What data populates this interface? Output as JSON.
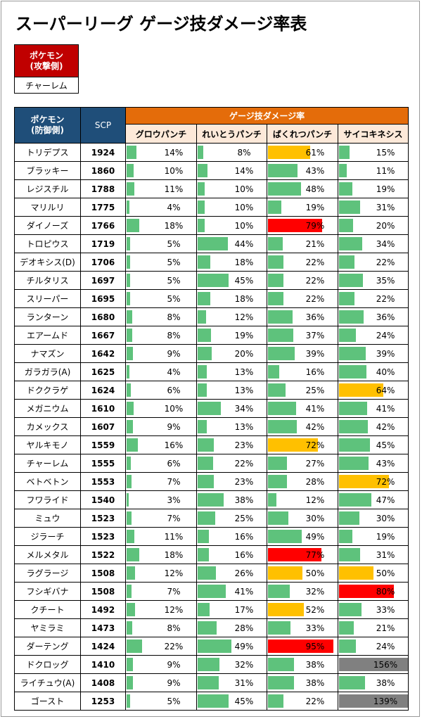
{
  "title": "スーパーリーグ ゲージ技ダメージ率表",
  "attacker": {
    "header_line1": "ポケモン",
    "header_line2": "(攻撃側)",
    "value": "チャーレム"
  },
  "table": {
    "defender_header_line1": "ポケモン",
    "defender_header_line2": "(防御側)",
    "scp_header": "SCP",
    "group_header": "ゲージ技ダメージ率",
    "moves": [
      "グロウパンチ",
      "れいとうパンチ",
      "ばくれつパンチ",
      "サイコキネシス"
    ],
    "colors": {
      "green": "#5ec27c",
      "orange": "#ffc000",
      "red": "#ff0000",
      "gray": "#808080"
    },
    "rows": [
      {
        "name": "トリデプス",
        "scp": "1924",
        "values": [
          14,
          8,
          61,
          15
        ]
      },
      {
        "name": "ブラッキー",
        "scp": "1860",
        "values": [
          10,
          14,
          43,
          11
        ]
      },
      {
        "name": "レジスチル",
        "scp": "1788",
        "values": [
          11,
          10,
          48,
          19
        ]
      },
      {
        "name": "マリルリ",
        "scp": "1775",
        "values": [
          4,
          10,
          19,
          31
        ]
      },
      {
        "name": "ダイノーズ",
        "scp": "1766",
        "values": [
          18,
          10,
          79,
          20
        ]
      },
      {
        "name": "トロピウス",
        "scp": "1719",
        "values": [
          5,
          44,
          21,
          34
        ]
      },
      {
        "name": "デオキシス(D)",
        "scp": "1706",
        "values": [
          5,
          18,
          22,
          22
        ]
      },
      {
        "name": "チルタリス",
        "scp": "1697",
        "values": [
          5,
          45,
          22,
          35
        ]
      },
      {
        "name": "スリーパー",
        "scp": "1695",
        "values": [
          5,
          18,
          22,
          22
        ]
      },
      {
        "name": "ランターン",
        "scp": "1680",
        "values": [
          8,
          12,
          36,
          36
        ]
      },
      {
        "name": "エアームド",
        "scp": "1667",
        "values": [
          8,
          19,
          37,
          24
        ]
      },
      {
        "name": "ナマズン",
        "scp": "1642",
        "values": [
          9,
          20,
          39,
          39
        ]
      },
      {
        "name": "ガラガラ(A)",
        "scp": "1625",
        "values": [
          4,
          13,
          16,
          40
        ]
      },
      {
        "name": "ドククラゲ",
        "scp": "1624",
        "values": [
          6,
          13,
          25,
          64
        ]
      },
      {
        "name": "メガニウム",
        "scp": "1610",
        "values": [
          10,
          34,
          41,
          41
        ]
      },
      {
        "name": "カメックス",
        "scp": "1607",
        "values": [
          9,
          13,
          42,
          42
        ]
      },
      {
        "name": "ヤルキモノ",
        "scp": "1559",
        "values": [
          16,
          23,
          72,
          45
        ]
      },
      {
        "name": "チャーレム",
        "scp": "1555",
        "values": [
          6,
          22,
          27,
          43
        ]
      },
      {
        "name": "ベトベトン",
        "scp": "1553",
        "values": [
          7,
          23,
          28,
          72
        ]
      },
      {
        "name": "フワライド",
        "scp": "1540",
        "values": [
          3,
          38,
          12,
          47
        ]
      },
      {
        "name": "ミュウ",
        "scp": "1523",
        "values": [
          7,
          25,
          30,
          30
        ]
      },
      {
        "name": "ジラーチ",
        "scp": "1523",
        "values": [
          11,
          16,
          49,
          19
        ]
      },
      {
        "name": "メルメタル",
        "scp": "1522",
        "values": [
          18,
          16,
          77,
          31
        ]
      },
      {
        "name": "ラグラージ",
        "scp": "1508",
        "values": [
          12,
          26,
          50,
          50
        ]
      },
      {
        "name": "フシギバナ",
        "scp": "1508",
        "values": [
          7,
          41,
          32,
          80
        ]
      },
      {
        "name": "クチート",
        "scp": "1492",
        "values": [
          12,
          17,
          52,
          33
        ]
      },
      {
        "name": "ヤミラミ",
        "scp": "1473",
        "values": [
          8,
          28,
          33,
          21
        ]
      },
      {
        "name": "ダーテング",
        "scp": "1424",
        "values": [
          22,
          49,
          95,
          24
        ]
      },
      {
        "name": "ドクロッグ",
        "scp": "1410",
        "values": [
          9,
          32,
          38,
          156
        ]
      },
      {
        "name": "ライチュウ(A)",
        "scp": "1408",
        "values": [
          9,
          31,
          38,
          38
        ]
      },
      {
        "name": "ゴースト",
        "scp": "1253",
        "values": [
          5,
          45,
          22,
          139
        ]
      }
    ]
  }
}
